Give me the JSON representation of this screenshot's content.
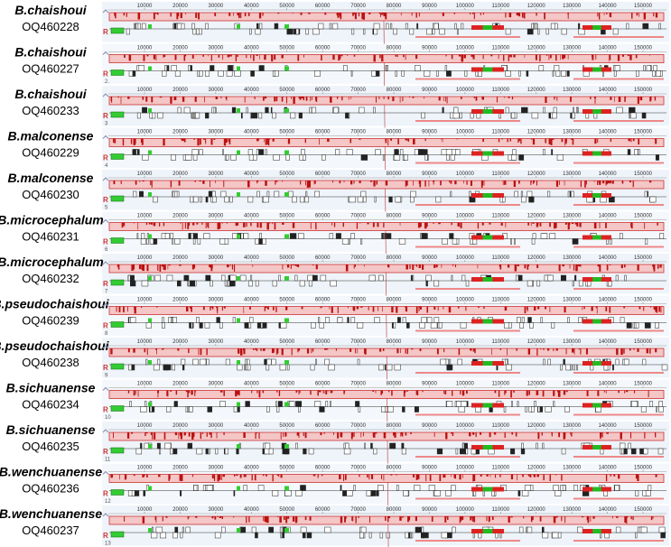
{
  "ruler": {
    "ticks": [
      10000,
      20000,
      30000,
      40000,
      50000,
      60000,
      70000,
      80000,
      90000,
      100000,
      110000,
      120000,
      130000,
      140000,
      150000
    ]
  },
  "rows": [
    {
      "species": "B.chaishoui",
      "accession": "OQ460228"
    },
    {
      "species": "B.chaishoui",
      "accession": "OQ460227",
      "num": "2."
    },
    {
      "species": "B.chaishoui",
      "accession": "OQ460233",
      "num": "3"
    },
    {
      "species": "B.malconense",
      "accession": "OQ460229",
      "num": "4"
    },
    {
      "species": "B.malconense",
      "accession": "OQ460230",
      "num": "5"
    },
    {
      "species": "B.microcephalum",
      "accession": "OQ460231",
      "num": "6"
    },
    {
      "species": "B.microcephalum",
      "accession": "OQ460232",
      "num": "7"
    },
    {
      "species": "B.pseudochaishoui",
      "accession": "OQ460239",
      "num": "8"
    },
    {
      "species": "B.pseudochaishoui",
      "accession": "OQ460238",
      "num": "9"
    },
    {
      "species": "B.sichuanense",
      "accession": "OQ460234",
      "num": "10"
    },
    {
      "species": "B.sichuanense",
      "accession": "OQ460235",
      "num": "11"
    },
    {
      "species": "B.wenchuanense",
      "accession": "OQ460236",
      "num": "12"
    },
    {
      "species": "B.wenchuanense",
      "accession": "OQ460237",
      "num": "13"
    }
  ]
}
